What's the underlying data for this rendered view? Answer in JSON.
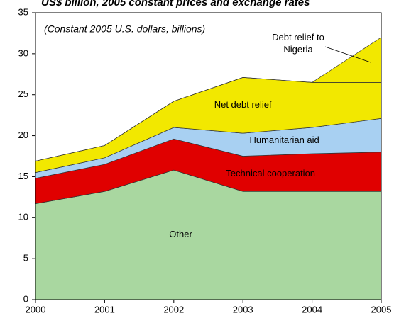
{
  "chart_data": {
    "type": "stacked_area",
    "title": "US$ billion, 2005 constant prices and exchange rates",
    "subtitle": "(Constant 2005 U.S. dollars, billions)",
    "x": [
      2000,
      2001,
      2002,
      2003,
      2004,
      2005
    ],
    "xlim": [
      2000,
      2005
    ],
    "xticks": [
      2000,
      2001,
      2002,
      2003,
      2004,
      2005
    ],
    "ylim": [
      0,
      35
    ],
    "yticks": [
      0,
      5,
      10,
      15,
      20,
      25,
      30,
      35
    ],
    "series": [
      {
        "name": "Other",
        "color": "#a9d7a0",
        "values": [
          11.7,
          13.2,
          15.8,
          13.2,
          13.2,
          13.2
        ]
      },
      {
        "name": "Technical cooperation",
        "color": "#e00000",
        "values": [
          3.1,
          3.3,
          3.8,
          4.3,
          4.6,
          4.8
        ]
      },
      {
        "name": "Humanitarian aid",
        "color": "#a8d0f2",
        "values": [
          0.7,
          0.8,
          1.4,
          2.8,
          3.2,
          4.1
        ]
      },
      {
        "name": "Net debt relief",
        "color": "#f2e800",
        "values": [
          1.4,
          1.5,
          3.2,
          6.8,
          5.5,
          4.4
        ]
      },
      {
        "name": "Debt relief to Nigeria",
        "color": "#f2e800",
        "values": [
          0,
          0,
          0,
          0,
          0,
          5.5
        ]
      }
    ]
  }
}
